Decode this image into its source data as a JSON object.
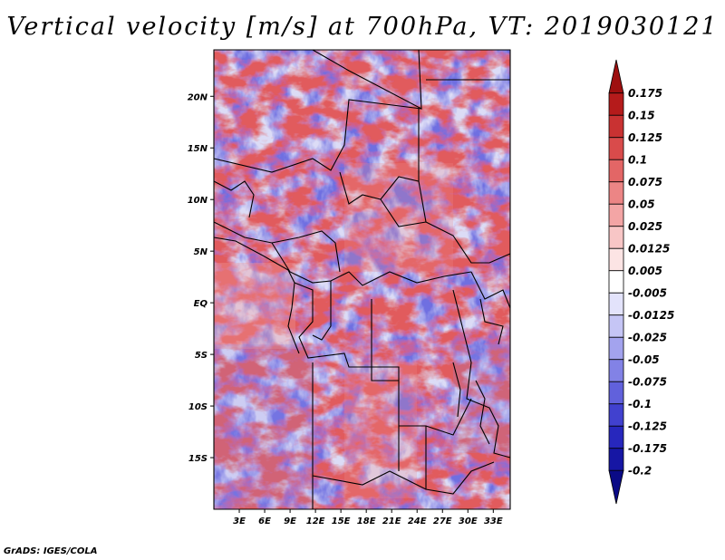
{
  "title": "Vertical velocity [m/s] at 700hPa, VT: 2019030121",
  "credit": "GrADS: IGES/COLA",
  "map": {
    "lat_labels": [
      "20N",
      "15N",
      "10N",
      "5N",
      "EQ",
      "5S",
      "10S",
      "15S"
    ],
    "lat_values": [
      20,
      15,
      10,
      5,
      0,
      -5,
      -10,
      -15
    ],
    "lon_labels": [
      "3E",
      "6E",
      "9E",
      "12E",
      "15E",
      "18E",
      "21E",
      "24E",
      "27E",
      "30E",
      "33E"
    ],
    "lon_values": [
      3,
      6,
      9,
      12,
      15,
      18,
      21,
      24,
      27,
      30,
      33
    ],
    "lon_range": [
      0,
      35
    ],
    "lat_range": [
      -20,
      24.5
    ]
  },
  "colorbar": {
    "labels": [
      "0.175",
      "0.15",
      "0.125",
      "0.1",
      "0.075",
      "0.05",
      "0.025",
      "0.0125",
      "0.005",
      "-0.005",
      "-0.0125",
      "-0.025",
      "-0.05",
      "-0.075",
      "-0.1",
      "-0.125",
      "-0.175",
      "-0.2"
    ],
    "colors": [
      "#9e0f0f",
      "#b51b1b",
      "#c93232",
      "#d94b4b",
      "#e36666",
      "#ec8585",
      "#f3a5a5",
      "#f8c6c6",
      "#fce4e4",
      "#ffffff",
      "#e3e3fb",
      "#c5c5f5",
      "#a3a3ee",
      "#8282e6",
      "#6161dc",
      "#4141cf",
      "#2727bd",
      "#1616a4",
      "#0a0a86"
    ]
  }
}
